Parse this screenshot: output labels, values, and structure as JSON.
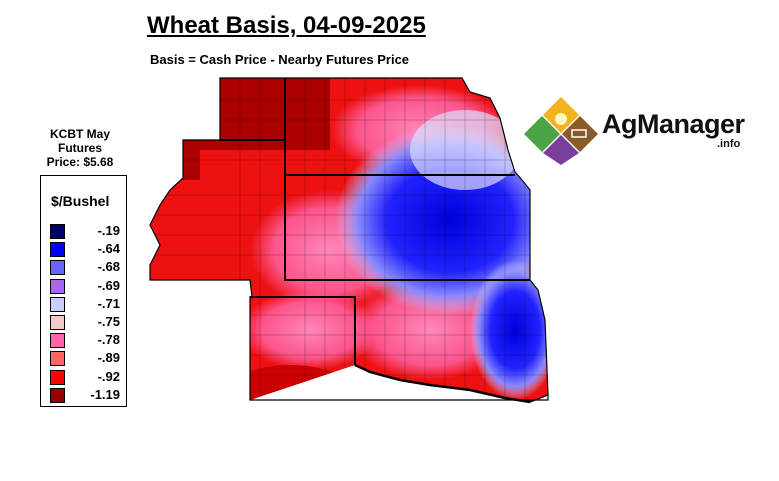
{
  "title": "Wheat Basis, 04-09-2025",
  "subtitle": "Basis = Cash Price - Nearby Futures Price",
  "futures": {
    "line1": "KCBT May",
    "line2": "Futures",
    "line3": "Price: $5.68"
  },
  "legend": {
    "title": "$/Bushel",
    "items": [
      {
        "label": "-.19",
        "color": "#000066"
      },
      {
        "label": "-.64",
        "color": "#0000ff"
      },
      {
        "label": "-.68",
        "color": "#6666ff"
      },
      {
        "label": "-.69",
        "color": "#aa66ee"
      },
      {
        "label": "-.71",
        "color": "#ccccff"
      },
      {
        "label": "-.75",
        "color": "#f5c8c8"
      },
      {
        "label": "-.78",
        "color": "#ff66aa"
      },
      {
        "label": "-.89",
        "color": "#ff6666"
      },
      {
        "label": "-.92",
        "color": "#ff0000"
      },
      {
        "label": "-1.19",
        "color": "#990000"
      }
    ]
  },
  "logo": {
    "name": "AgManager",
    "suffix": ".info"
  }
}
